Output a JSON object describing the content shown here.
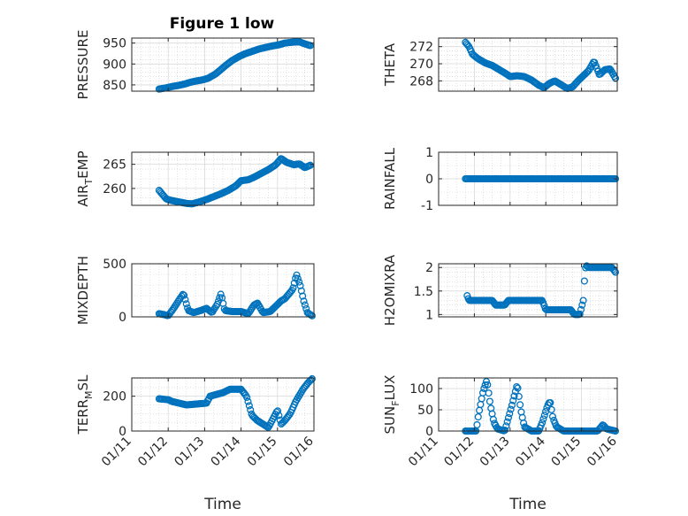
{
  "figure_title": "Figure 1 low",
  "marker_color": "#0072BD",
  "chart_data": [
    {
      "type": "scatter",
      "title": "Figure 1 low",
      "ylabel": "PRESSURE",
      "ylabel_parts": [
        [
          "PRESSURE",
          "n"
        ]
      ],
      "xlabel": "",
      "xlim": [
        0,
        5
      ],
      "ylim": [
        835,
        962
      ],
      "yticks": [
        850,
        900,
        950
      ],
      "yminor": [
        860,
        870,
        880,
        890,
        910,
        920,
        930,
        940
      ],
      "show_xtick_labels": false,
      "knots": [
        [
          0.75,
          840
        ],
        [
          0.95,
          843
        ],
        [
          1.1,
          846
        ],
        [
          1.3,
          849
        ],
        [
          1.45,
          852
        ],
        [
          1.6,
          856
        ],
        [
          1.75,
          859
        ],
        [
          1.95,
          862
        ],
        [
          2.1,
          866
        ],
        [
          2.3,
          876
        ],
        [
          2.45,
          887
        ],
        [
          2.6,
          898
        ],
        [
          2.75,
          908
        ],
        [
          2.95,
          918
        ],
        [
          3.1,
          924
        ],
        [
          3.3,
          930
        ],
        [
          3.5,
          936
        ],
        [
          3.7,
          940
        ],
        [
          3.85,
          943
        ],
        [
          4.05,
          946
        ],
        [
          4.2,
          950
        ],
        [
          4.4,
          952
        ],
        [
          4.6,
          953
        ],
        [
          4.75,
          948
        ],
        [
          4.9,
          944
        ]
      ]
    },
    {
      "type": "scatter",
      "ylabel": "THETA",
      "ylabel_parts": [
        [
          "THETA",
          "n"
        ]
      ],
      "xlabel": "",
      "xlim": [
        0,
        5
      ],
      "ylim": [
        266.8,
        273
      ],
      "yticks": [
        268,
        270,
        272
      ],
      "yminor": [
        267,
        267.5,
        268.5,
        269,
        269.5,
        270.5,
        271,
        271.5,
        272.5
      ],
      "show_xtick_labels": false,
      "knots": [
        [
          0.75,
          272.5
        ],
        [
          0.85,
          272
        ],
        [
          0.95,
          271.1
        ],
        [
          1.1,
          270.6
        ],
        [
          1.3,
          270.1
        ],
        [
          1.5,
          269.8
        ],
        [
          1.7,
          269.3
        ],
        [
          1.9,
          268.8
        ],
        [
          2.0,
          268.5
        ],
        [
          2.2,
          268.6
        ],
        [
          2.4,
          268.5
        ],
        [
          2.6,
          268.1
        ],
        [
          2.8,
          267.5
        ],
        [
          2.95,
          267.2
        ],
        [
          3.1,
          267.7
        ],
        [
          3.25,
          268
        ],
        [
          3.45,
          267.5
        ],
        [
          3.6,
          267.1
        ],
        [
          3.75,
          267.3
        ],
        [
          3.9,
          268
        ],
        [
          4.05,
          268.6
        ],
        [
          4.2,
          269.2
        ],
        [
          4.35,
          270.3
        ],
        [
          4.5,
          268.7
        ],
        [
          4.65,
          269.3
        ],
        [
          4.8,
          269.4
        ],
        [
          4.95,
          268.3
        ]
      ]
    },
    {
      "type": "scatter",
      "ylabel": "AIR_TEMP",
      "ylabel_parts": [
        [
          "AIR",
          "n"
        ],
        [
          "T",
          "sub"
        ],
        [
          "EMP",
          "n"
        ]
      ],
      "xlabel": "",
      "xlim": [
        0,
        5
      ],
      "ylim": [
        256.5,
        267.5
      ],
      "yticks": [
        260,
        265
      ],
      "yminor": [
        258,
        262,
        264,
        266
      ],
      "show_xtick_labels": false,
      "knots": [
        [
          0.75,
          259.6
        ],
        [
          0.85,
          258.7
        ],
        [
          0.95,
          257.8
        ],
        [
          1.1,
          257.5
        ],
        [
          1.3,
          257.2
        ],
        [
          1.5,
          256.9
        ],
        [
          1.65,
          256.8
        ],
        [
          1.85,
          257.2
        ],
        [
          2.05,
          257.7
        ],
        [
          2.25,
          258.3
        ],
        [
          2.45,
          258.9
        ],
        [
          2.65,
          259.6
        ],
        [
          2.85,
          260.5
        ],
        [
          3.0,
          261.6
        ],
        [
          3.2,
          261.8
        ],
        [
          3.35,
          262.3
        ],
        [
          3.55,
          263.1
        ],
        [
          3.75,
          263.9
        ],
        [
          3.95,
          264.9
        ],
        [
          4.1,
          266.2
        ],
        [
          4.25,
          265.4
        ],
        [
          4.45,
          264.9
        ],
        [
          4.6,
          265.1
        ],
        [
          4.75,
          264.3
        ],
        [
          4.9,
          264.8
        ]
      ]
    },
    {
      "type": "scatter",
      "ylabel": "RAINFALL",
      "ylabel_parts": [
        [
          "RAINFALL",
          "n"
        ]
      ],
      "xlabel": "",
      "xlim": [
        0,
        5
      ],
      "ylim": [
        -1,
        1
      ],
      "yticks": [
        -1,
        0,
        1
      ],
      "yminor": [
        -0.5,
        0.5
      ],
      "show_xtick_labels": false,
      "knots": [
        [
          0.75,
          0
        ],
        [
          4.95,
          0
        ]
      ]
    },
    {
      "type": "scatter",
      "ylabel": "MIXDEPTH",
      "ylabel_parts": [
        [
          "MIXDEPTH",
          "n"
        ]
      ],
      "xlabel": "",
      "xlim": [
        0,
        5
      ],
      "ylim": [
        0,
        500
      ],
      "yticks": [
        0,
        500
      ],
      "yminor": [
        100,
        200,
        300,
        400
      ],
      "show_xtick_labels": false,
      "knots": [
        [
          0.75,
          30
        ],
        [
          0.9,
          20
        ],
        [
          1.0,
          10
        ],
        [
          1.15,
          80
        ],
        [
          1.3,
          160
        ],
        [
          1.42,
          220
        ],
        [
          1.55,
          60
        ],
        [
          1.7,
          40
        ],
        [
          1.9,
          60
        ],
        [
          2.05,
          80
        ],
        [
          2.2,
          40
        ],
        [
          2.35,
          120
        ],
        [
          2.45,
          220
        ],
        [
          2.55,
          60
        ],
        [
          2.75,
          50
        ],
        [
          3.0,
          50
        ],
        [
          3.2,
          30
        ],
        [
          3.35,
          110
        ],
        [
          3.45,
          130
        ],
        [
          3.6,
          40
        ],
        [
          3.8,
          50
        ],
        [
          3.95,
          100
        ],
        [
          4.1,
          150
        ],
        [
          4.2,
          170
        ],
        [
          4.3,
          210
        ],
        [
          4.42,
          260
        ],
        [
          4.52,
          400
        ],
        [
          4.62,
          300
        ],
        [
          4.72,
          150
        ],
        [
          4.82,
          40
        ],
        [
          4.95,
          10
        ]
      ]
    },
    {
      "type": "scatter",
      "ylabel": "H2OMIXRA",
      "ylabel_parts": [
        [
          "H2OMIXRA",
          "n"
        ]
      ],
      "xlabel": "",
      "xlim": [
        0,
        5
      ],
      "ylim": [
        0.95,
        2.08
      ],
      "yticks": [
        1,
        1.5,
        2
      ],
      "yminor": [
        1.1,
        1.2,
        1.3,
        1.4,
        1.6,
        1.7,
        1.8,
        1.9
      ],
      "show_xtick_labels": false,
      "knots": [
        [
          0.8,
          1.4
        ],
        [
          0.85,
          1.3
        ],
        [
          1.5,
          1.3
        ],
        [
          1.6,
          1.2
        ],
        [
          1.85,
          1.2
        ],
        [
          1.95,
          1.3
        ],
        [
          2.9,
          1.3
        ],
        [
          3.0,
          1.1
        ],
        [
          3.7,
          1.1
        ],
        [
          3.8,
          1.0
        ],
        [
          3.95,
          1.0
        ],
        [
          4.05,
          1.3
        ],
        [
          4.08,
          1.7
        ],
        [
          4.12,
          2.05
        ],
        [
          4.2,
          2.0
        ],
        [
          4.85,
          2.0
        ],
        [
          4.95,
          1.9
        ]
      ]
    },
    {
      "type": "scatter",
      "ylabel": "TERR_MSL",
      "ylabel_parts": [
        [
          "TERR",
          "n"
        ],
        [
          "M",
          "sub"
        ],
        [
          "SL",
          "n"
        ]
      ],
      "xlabel": "Time",
      "xlim": [
        0,
        5
      ],
      "ylim": [
        0,
        305
      ],
      "yticks": [
        0,
        200
      ],
      "yminor": [
        50,
        100,
        150,
        250,
        300
      ],
      "xticklabels": [
        "01/11",
        "01/12",
        "01/13",
        "01/14",
        "01/15",
        "01/16"
      ],
      "show_xtick_labels": true,
      "knots": [
        [
          0.75,
          185
        ],
        [
          1.0,
          180
        ],
        [
          1.1,
          170
        ],
        [
          1.3,
          160
        ],
        [
          1.5,
          150
        ],
        [
          2.05,
          160
        ],
        [
          2.15,
          200
        ],
        [
          2.5,
          220
        ],
        [
          2.7,
          240
        ],
        [
          3.0,
          240
        ],
        [
          3.15,
          200
        ],
        [
          3.3,
          90
        ],
        [
          3.45,
          60
        ],
        [
          3.6,
          40
        ],
        [
          3.75,
          20
        ],
        [
          3.9,
          80
        ],
        [
          4.0,
          120
        ],
        [
          4.1,
          40
        ],
        [
          4.2,
          60
        ],
        [
          4.35,
          100
        ],
        [
          4.5,
          170
        ],
        [
          4.7,
          240
        ],
        [
          4.85,
          280
        ],
        [
          4.95,
          300
        ]
      ]
    },
    {
      "type": "scatter",
      "ylabel": "SUN_FLUX",
      "ylabel_parts": [
        [
          "SUN",
          "n"
        ],
        [
          "F",
          "sub"
        ],
        [
          "LUX",
          "n"
        ]
      ],
      "xlabel": "Time",
      "xlim": [
        0,
        5
      ],
      "ylim": [
        0,
        125
      ],
      "yticks": [
        0,
        50,
        100
      ],
      "yminor": [
        25,
        75
      ],
      "xticklabels": [
        "01/11",
        "01/12",
        "01/13",
        "01/14",
        "01/15",
        "01/16"
      ],
      "show_xtick_labels": true,
      "knots": [
        [
          0.75,
          0
        ],
        [
          1.05,
          0
        ],
        [
          1.12,
          40
        ],
        [
          1.25,
          95
        ],
        [
          1.35,
          120
        ],
        [
          1.45,
          60
        ],
        [
          1.55,
          20
        ],
        [
          1.65,
          5
        ],
        [
          1.85,
          0
        ],
        [
          2.05,
          60
        ],
        [
          2.2,
          110
        ],
        [
          2.3,
          50
        ],
        [
          2.4,
          10
        ],
        [
          2.6,
          0
        ],
        [
          2.8,
          0
        ],
        [
          2.9,
          20
        ],
        [
          3.05,
          60
        ],
        [
          3.12,
          70
        ],
        [
          3.2,
          30
        ],
        [
          3.3,
          10
        ],
        [
          3.5,
          0
        ],
        [
          4.45,
          0
        ],
        [
          4.6,
          15
        ],
        [
          4.7,
          5
        ],
        [
          4.95,
          0
        ]
      ]
    }
  ]
}
